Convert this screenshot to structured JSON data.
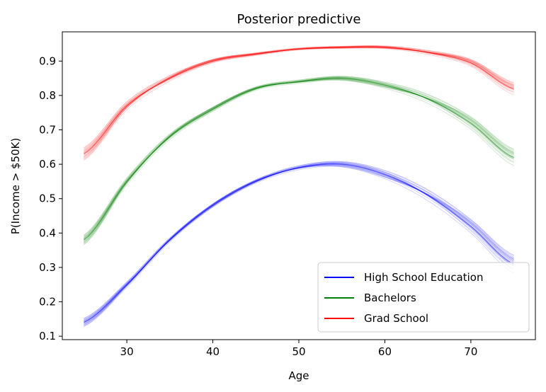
{
  "chart_data": {
    "type": "line",
    "title": "Posterior predictive",
    "xlabel": "Age",
    "ylabel": "P(Income > $50K)",
    "xlim": [
      22.5,
      77.5
    ],
    "ylim": [
      0.09,
      0.985
    ],
    "xticks": [
      30,
      40,
      50,
      60,
      70
    ],
    "yticks": [
      0.1,
      0.2,
      0.3,
      0.4,
      0.5,
      0.6,
      0.7,
      0.8,
      0.9
    ],
    "x": [
      25,
      30,
      35,
      40,
      45,
      50,
      55,
      60,
      65,
      70,
      75
    ],
    "grid": false,
    "legend_position": "lower-right",
    "series": [
      {
        "name": "High School Education",
        "color": "#0000ff",
        "values": [
          0.14,
          0.25,
          0.38,
          0.48,
          0.55,
          0.59,
          0.6,
          0.57,
          0.51,
          0.42,
          0.31
        ],
        "band": [
          0.012,
          0.008,
          0.006,
          0.005,
          0.005,
          0.006,
          0.008,
          0.012,
          0.016,
          0.02,
          0.026
        ]
      },
      {
        "name": "Bachelors",
        "color": "#008000",
        "values": [
          0.38,
          0.55,
          0.68,
          0.76,
          0.82,
          0.84,
          0.85,
          0.83,
          0.79,
          0.72,
          0.62
        ],
        "band": [
          0.014,
          0.01,
          0.008,
          0.006,
          0.005,
          0.005,
          0.006,
          0.009,
          0.013,
          0.018,
          0.024
        ]
      },
      {
        "name": "Grad School",
        "color": "#ff0000",
        "values": [
          0.63,
          0.77,
          0.85,
          0.9,
          0.92,
          0.935,
          0.94,
          0.94,
          0.925,
          0.895,
          0.82
        ],
        "band": [
          0.018,
          0.012,
          0.008,
          0.005,
          0.004,
          0.003,
          0.003,
          0.004,
          0.006,
          0.01,
          0.018
        ]
      }
    ]
  }
}
